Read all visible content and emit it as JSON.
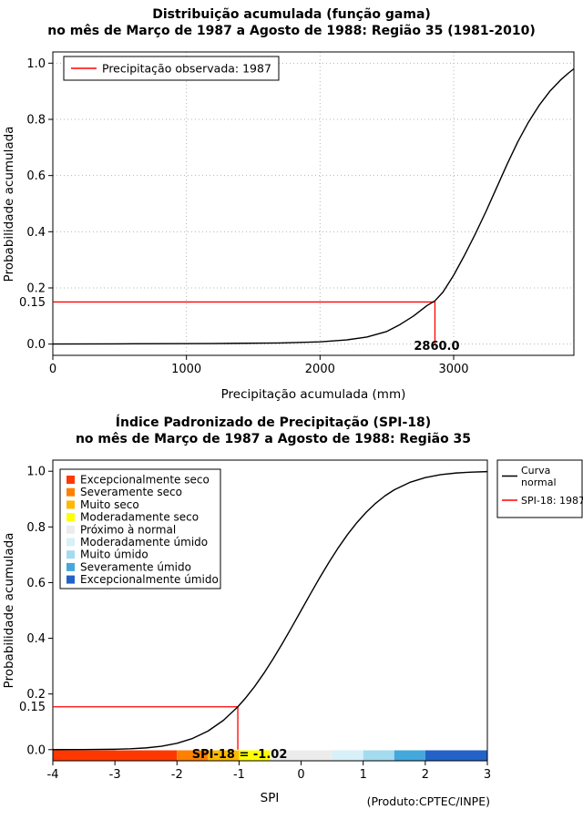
{
  "chart_data": [
    {
      "type": "line",
      "title": "Distribuição acumulada (função gama)",
      "subtitle": "no mês de Março de 1987 a Agosto de 1988: Região 35 (1981-2010)",
      "xlabel": "Precipitação acumulada (mm)",
      "ylabel": "Probabilidade acumulada",
      "xlim": [
        0,
        3900
      ],
      "ylim": [
        0,
        1
      ],
      "grid": true,
      "xticks": [
        0,
        1000,
        2000,
        3000
      ],
      "xtick_labels": [
        "0",
        "1000",
        "2000",
        "3000"
      ],
      "ytick_values": [
        0,
        0.2,
        0.4,
        0.6,
        0.8,
        1.0
      ],
      "ytick_labels": [
        "0.0",
        "0.2",
        "0.4",
        "0.6",
        "0.8",
        "1.0"
      ],
      "legend": [
        {
          "label": "Precipitação observada: 1987",
          "color": "#FF0000"
        }
      ],
      "annotation": {
        "x": 2860.0,
        "y": 0.15,
        "ylabel": "0.15",
        "label": "2860.0",
        "color": "#FF0000"
      },
      "series": [
        {
          "id": "gamma-cdf-curve",
          "name": "Distribuição acumulada (função gama)",
          "color": "#000000",
          "points": [
            [
              0,
              0.0005
            ],
            [
              600,
              0.001
            ],
            [
              1200,
              0.002
            ],
            [
              1700,
              0.004
            ],
            [
              2000,
              0.008
            ],
            [
              2200,
              0.015
            ],
            [
              2350,
              0.025
            ],
            [
              2500,
              0.045
            ],
            [
              2600,
              0.07
            ],
            [
              2700,
              0.1
            ],
            [
              2800,
              0.137
            ],
            [
              2860,
              0.154
            ],
            [
              2920,
              0.185
            ],
            [
              3000,
              0.245
            ],
            [
              3080,
              0.315
            ],
            [
              3160,
              0.39
            ],
            [
              3240,
              0.47
            ],
            [
              3320,
              0.555
            ],
            [
              3400,
              0.64
            ],
            [
              3480,
              0.72
            ],
            [
              3560,
              0.79
            ],
            [
              3640,
              0.85
            ],
            [
              3720,
              0.9
            ],
            [
              3800,
              0.94
            ],
            [
              3860,
              0.965
            ],
            [
              3900,
              0.98
            ]
          ]
        }
      ]
    },
    {
      "type": "line",
      "title": "Índice Padronizado de Precipitação (SPI-18)",
      "subtitle": "no mês de Março de 1987 a Agosto de 1988: Região 35",
      "xlabel": "SPI",
      "ylabel": "Probabilidade acumulada",
      "xlim": [
        -4,
        3
      ],
      "ylim": [
        0,
        1
      ],
      "grid": false,
      "xticks": [
        -4,
        -3,
        -2,
        -1,
        0,
        1,
        2,
        3
      ],
      "xtick_labels": [
        "-4",
        "-3",
        "-2",
        "-1",
        "0",
        "1",
        "2",
        "3"
      ],
      "ytick_values": [
        0,
        0.2,
        0.4,
        0.6,
        0.8,
        1.0
      ],
      "ytick_labels": [
        "0.0",
        "0.2",
        "0.4",
        "0.6",
        "0.8",
        "1.0"
      ],
      "categories": [
        {
          "label": "Excepcionalmente seco",
          "color": "#FF3800"
        },
        {
          "label": "Severamente seco",
          "color": "#FF8000"
        },
        {
          "label": "Muito seco",
          "color": "#FFB900"
        },
        {
          "label": "Moderadamente seco",
          "color": "#FFFF00"
        },
        {
          "label": "Próximo à normal",
          "color": "#ECECEC"
        },
        {
          "label": "Moderadamente úmido",
          "color": "#D8F0F8"
        },
        {
          "label": "Muito úmido",
          "color": "#A4DBEF"
        },
        {
          "label": "Severamente úmido",
          "color": "#44A8DC"
        },
        {
          "label": "Excepcionalmente úmido",
          "color": "#2363C8"
        }
      ],
      "colorbar": {
        "breaks": [
          -4,
          -2,
          -1.5,
          -1,
          -0.5,
          0.5,
          1,
          1.5,
          2,
          3
        ]
      },
      "curve_legend": [
        {
          "label": "Curva normal",
          "lines": [
            "Curva",
            "normal"
          ],
          "color": "#000000"
        },
        {
          "label": "SPI-18: 1987",
          "lines": [
            "SPI-18: 1987"
          ],
          "color": "#FF0000"
        }
      ],
      "annotation": {
        "x": -1.02,
        "y": 0.154,
        "ylabel": "0.15",
        "label": "SPI-18 = -1.02",
        "color": "#FF0000"
      },
      "footer": "(Produto:CPTEC/INPE)",
      "series": [
        {
          "id": "normal-cdf-curve",
          "name": "Curva normal",
          "color": "#000000",
          "points": [
            [
              -4,
              0.0001
            ],
            [
              -3.5,
              0.0002
            ],
            [
              -3,
              0.0013
            ],
            [
              -2.75,
              0.003
            ],
            [
              -2.5,
              0.0062
            ],
            [
              -2.25,
              0.0122
            ],
            [
              -2,
              0.0228
            ],
            [
              -1.75,
              0.0401
            ],
            [
              -1.5,
              0.0668
            ],
            [
              -1.25,
              0.1056
            ],
            [
              -1.02,
              0.1539
            ],
            [
              -0.9,
              0.1841
            ],
            [
              -0.75,
              0.2266
            ],
            [
              -0.6,
              0.2743
            ],
            [
              -0.45,
              0.3264
            ],
            [
              -0.3,
              0.3821
            ],
            [
              -0.15,
              0.4404
            ],
            [
              0,
              0.5
            ],
            [
              0.15,
              0.5596
            ],
            [
              0.3,
              0.6179
            ],
            [
              0.45,
              0.6736
            ],
            [
              0.6,
              0.7257
            ],
            [
              0.75,
              0.7734
            ],
            [
              0.9,
              0.8159
            ],
            [
              1.05,
              0.8531
            ],
            [
              1.2,
              0.8849
            ],
            [
              1.35,
              0.9115
            ],
            [
              1.5,
              0.9332
            ],
            [
              1.75,
              0.9599
            ],
            [
              2,
              0.9772
            ],
            [
              2.25,
              0.9878
            ],
            [
              2.5,
              0.9938
            ],
            [
              2.75,
              0.997
            ],
            [
              3,
              0.9987
            ]
          ]
        }
      ]
    }
  ]
}
